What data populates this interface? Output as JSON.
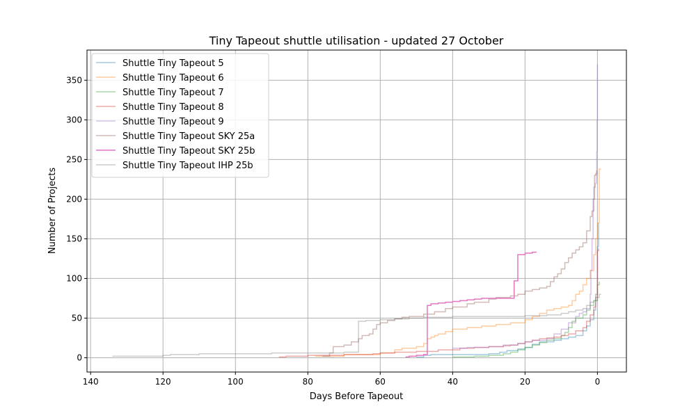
{
  "chart_data": {
    "type": "line",
    "title": "Tiny Tapeout shuttle utilisation - updated 27 October",
    "xlabel": "Days Before Tapeout",
    "ylabel": "Number of Projects",
    "xlim": [
      141,
      -8
    ],
    "ylim": [
      -18,
      388
    ],
    "x_reversed": true,
    "grid": true,
    "legend_position": "top-left",
    "x_ticks": [
      140,
      120,
      100,
      80,
      60,
      40,
      20,
      0
    ],
    "y_ticks": [
      0,
      50,
      100,
      150,
      200,
      250,
      300,
      350
    ],
    "series": [
      {
        "name": "Shuttle Tiny Tapeout 5",
        "color": "#1f77b4",
        "opacity": 0.4,
        "points": [
          [
            50,
            1
          ],
          [
            48,
            3
          ],
          [
            46,
            4
          ],
          [
            40,
            4
          ],
          [
            30,
            5
          ],
          [
            27,
            7
          ],
          [
            25,
            9
          ],
          [
            22,
            11
          ],
          [
            20,
            13
          ],
          [
            18,
            17
          ],
          [
            16,
            20
          ],
          [
            12,
            22
          ],
          [
            10,
            24
          ],
          [
            8,
            26
          ],
          [
            6,
            28
          ],
          [
            4,
            34
          ],
          [
            3,
            40
          ],
          [
            2,
            48
          ],
          [
            1,
            60
          ],
          [
            0.5,
            80
          ],
          [
            0,
            100
          ],
          [
            0,
            140
          ],
          [
            -0.3,
            170
          ]
        ]
      },
      {
        "name": "Shuttle Tiny Tapeout 6",
        "color": "#ff7f0e",
        "opacity": 0.4,
        "points": [
          [
            78,
            2
          ],
          [
            70,
            4
          ],
          [
            60,
            6
          ],
          [
            56,
            10
          ],
          [
            54,
            12
          ],
          [
            50,
            14
          ],
          [
            48,
            14
          ],
          [
            48,
            18
          ],
          [
            47,
            24
          ],
          [
            46,
            26
          ],
          [
            45,
            28
          ],
          [
            44,
            30
          ],
          [
            42,
            33
          ],
          [
            40,
            36
          ],
          [
            36,
            38
          ],
          [
            32,
            40
          ],
          [
            28,
            42
          ],
          [
            24,
            44
          ],
          [
            20,
            48
          ],
          [
            18,
            52
          ],
          [
            16,
            56
          ],
          [
            14,
            60
          ],
          [
            12,
            62
          ],
          [
            10,
            64
          ],
          [
            8,
            66
          ],
          [
            7,
            72
          ],
          [
            6,
            80
          ],
          [
            5,
            84
          ],
          [
            4,
            92
          ],
          [
            3,
            100
          ],
          [
            2,
            110
          ],
          [
            1,
            130
          ],
          [
            0.5,
            150
          ],
          [
            0,
            170
          ],
          [
            -0.5,
            200
          ],
          [
            -0.5,
            238
          ],
          [
            -1,
            238
          ]
        ]
      },
      {
        "name": "Shuttle Tiny Tapeout 7",
        "color": "#2ca02c",
        "opacity": 0.4,
        "points": [
          [
            40,
            1
          ],
          [
            34,
            2
          ],
          [
            30,
            3
          ],
          [
            26,
            5
          ],
          [
            24,
            7
          ],
          [
            22,
            10
          ],
          [
            20,
            13
          ],
          [
            18,
            16
          ],
          [
            16,
            19
          ],
          [
            14,
            22
          ],
          [
            12,
            24
          ],
          [
            10,
            28
          ],
          [
            9,
            32
          ],
          [
            8,
            38
          ],
          [
            7,
            46
          ],
          [
            6,
            50
          ],
          [
            4,
            54
          ],
          [
            3,
            60
          ],
          [
            2,
            66
          ],
          [
            1,
            72
          ],
          [
            0,
            88
          ],
          [
            0,
            92
          ],
          [
            -0.5,
            96
          ]
        ]
      },
      {
        "name": "Shuttle Tiny Tapeout 8",
        "color": "#d62728",
        "opacity": 0.4,
        "points": [
          [
            88,
            1
          ],
          [
            86,
            2
          ],
          [
            80,
            3
          ],
          [
            70,
            4
          ],
          [
            62,
            5
          ],
          [
            60,
            6
          ],
          [
            56,
            7
          ],
          [
            50,
            8
          ],
          [
            44,
            10
          ],
          [
            38,
            12
          ],
          [
            34,
            13
          ],
          [
            30,
            14
          ],
          [
            26,
            15
          ],
          [
            24,
            16
          ],
          [
            22,
            18
          ],
          [
            20,
            20
          ],
          [
            18,
            22
          ],
          [
            16,
            24
          ],
          [
            14,
            25
          ],
          [
            12,
            26
          ],
          [
            10,
            28
          ],
          [
            8,
            30
          ],
          [
            6,
            34
          ],
          [
            4,
            38
          ],
          [
            3,
            46
          ],
          [
            2,
            54
          ],
          [
            1,
            64
          ],
          [
            0.5,
            76
          ],
          [
            0,
            90
          ],
          [
            0,
            135
          ],
          [
            -0.3,
            138
          ]
        ]
      },
      {
        "name": "Shuttle Tiny Tapeout 9",
        "color": "#9467bd",
        "opacity": 0.4,
        "points": [
          [
            40,
            12
          ],
          [
            36,
            13
          ],
          [
            30,
            14
          ],
          [
            26,
            16
          ],
          [
            22,
            18
          ],
          [
            20,
            20
          ],
          [
            18,
            22
          ],
          [
            14,
            24
          ],
          [
            12,
            30
          ],
          [
            10,
            36
          ],
          [
            8,
            44
          ],
          [
            6,
            52
          ],
          [
            5,
            56
          ],
          [
            4,
            58
          ],
          [
            3,
            62
          ],
          [
            2,
            80
          ],
          [
            1.8,
            110
          ],
          [
            1.5,
            150
          ],
          [
            1.2,
            200
          ],
          [
            1,
            215
          ],
          [
            0.6,
            220
          ],
          [
            0.3,
            230
          ],
          [
            0.2,
            260
          ],
          [
            0.1,
            300
          ],
          [
            0,
            330
          ],
          [
            0,
            370
          ]
        ]
      },
      {
        "name": "Shuttle Tiny Tapeout SKY 25a",
        "color": "#8c564b",
        "opacity": 0.4,
        "points": [
          [
            76,
            2
          ],
          [
            74,
            6
          ],
          [
            73,
            14
          ],
          [
            70,
            16
          ],
          [
            68,
            20
          ],
          [
            66,
            24
          ],
          [
            65,
            28
          ],
          [
            63,
            30
          ],
          [
            62,
            36
          ],
          [
            61,
            42
          ],
          [
            60,
            44
          ],
          [
            58,
            47
          ],
          [
            56,
            49
          ],
          [
            54,
            51
          ],
          [
            52,
            52
          ],
          [
            50,
            52
          ],
          [
            48,
            55
          ],
          [
            45,
            58
          ],
          [
            42,
            62
          ],
          [
            40,
            64
          ],
          [
            38,
            64
          ],
          [
            36,
            68
          ],
          [
            34,
            70
          ],
          [
            30,
            74
          ],
          [
            28,
            76
          ],
          [
            24,
            78
          ],
          [
            22,
            80
          ],
          [
            20,
            84
          ],
          [
            18,
            86
          ],
          [
            16,
            88
          ],
          [
            14,
            90
          ],
          [
            13,
            96
          ],
          [
            12,
            102
          ],
          [
            11,
            106
          ],
          [
            10,
            112
          ],
          [
            9,
            120
          ],
          [
            8,
            126
          ],
          [
            7,
            132
          ],
          [
            6,
            136
          ],
          [
            5,
            140
          ],
          [
            4,
            145
          ],
          [
            3,
            160
          ],
          [
            2,
            178
          ],
          [
            1.5,
            185
          ],
          [
            1,
            200
          ],
          [
            0.8,
            230
          ],
          [
            0.5,
            232
          ],
          [
            0.2,
            236
          ]
        ]
      },
      {
        "name": "Shuttle Tiny Tapeout SKY 25b",
        "color": "#e377c2",
        "opacity": 1,
        "points": [
          [
            53,
            1
          ],
          [
            52,
            2
          ],
          [
            50,
            3
          ],
          [
            48,
            4
          ],
          [
            47,
            5
          ],
          [
            47,
            66
          ],
          [
            46,
            68
          ],
          [
            44,
            69
          ],
          [
            42,
            70
          ],
          [
            40,
            71
          ],
          [
            38,
            72
          ],
          [
            36,
            73
          ],
          [
            34,
            74
          ],
          [
            32,
            75
          ],
          [
            28,
            75
          ],
          [
            23,
            75
          ],
          [
            23,
            97
          ],
          [
            22,
            100
          ],
          [
            22,
            130
          ],
          [
            20,
            132
          ],
          [
            18,
            133
          ],
          [
            17,
            134
          ]
        ]
      },
      {
        "name": "Shuttle Tiny Tapeout IHP 25b",
        "color": "#7f7f7f",
        "opacity": 0.4,
        "points": [
          [
            134,
            2
          ],
          [
            120,
            3
          ],
          [
            118,
            4
          ],
          [
            110,
            5
          ],
          [
            100,
            5
          ],
          [
            90,
            6
          ],
          [
            80,
            6
          ],
          [
            70,
            7
          ],
          [
            66,
            7
          ],
          [
            66,
            46
          ],
          [
            64,
            47
          ],
          [
            60,
            48
          ],
          [
            56,
            49
          ],
          [
            52,
            50
          ],
          [
            48,
            51
          ],
          [
            44,
            51
          ],
          [
            40,
            52
          ],
          [
            30,
            52
          ],
          [
            20,
            53
          ],
          [
            14,
            54
          ],
          [
            12,
            54
          ],
          [
            10,
            56
          ],
          [
            8,
            58
          ],
          [
            6,
            60
          ],
          [
            4,
            62
          ],
          [
            3,
            66
          ],
          [
            2,
            70
          ],
          [
            1,
            72
          ],
          [
            0,
            76
          ],
          [
            -0.5,
            80
          ],
          [
            -1,
            80
          ]
        ]
      }
    ]
  }
}
